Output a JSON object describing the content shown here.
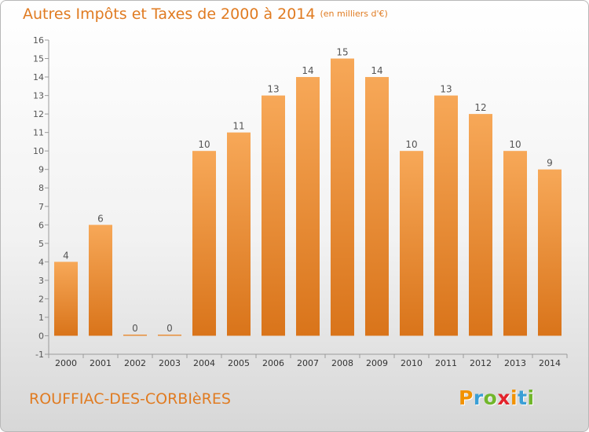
{
  "header": {
    "title": "Autres Impôts et Taxes de 2000 à 2014",
    "unit": "(en milliers d'€)"
  },
  "footer": {
    "commune": "ROUFFIAC-DES-CORBIèRES",
    "logo": [
      "P",
      "r",
      "o",
      "x",
      "i",
      "t",
      "i"
    ],
    "logo_colors": [
      "#f29200",
      "#3a9fd6",
      "#71b62b",
      "#e3232c",
      "#f29200",
      "#3a9fd6",
      "#71b62b"
    ]
  },
  "colors": {
    "accent": "#e07b21",
    "bar_top": "#f7a858",
    "bar_bottom": "#d9741a"
  },
  "chart_data": {
    "type": "bar",
    "title": "Autres Impôts et Taxes de 2000 à 2014",
    "subtitle": "(en milliers d'€)",
    "categories": [
      "2000",
      "2001",
      "2002",
      "2003",
      "2004",
      "2005",
      "2006",
      "2007",
      "2008",
      "2009",
      "2010",
      "2011",
      "2012",
      "2013",
      "2014"
    ],
    "values": [
      4,
      6,
      0,
      0,
      10,
      11,
      13,
      14,
      15,
      14,
      10,
      13,
      12,
      10,
      9
    ],
    "data_labels": [
      "4",
      "6",
      "0",
      "0",
      "10",
      "11",
      "13",
      "14",
      "15",
      "14",
      "10",
      "13",
      "12",
      "10",
      "9"
    ],
    "ylim": [
      -1,
      16
    ],
    "yticks": [
      -1,
      0,
      1,
      2,
      3,
      4,
      5,
      6,
      7,
      8,
      9,
      10,
      11,
      12,
      13,
      14,
      15,
      16
    ],
    "grid": false,
    "legend": "none"
  }
}
